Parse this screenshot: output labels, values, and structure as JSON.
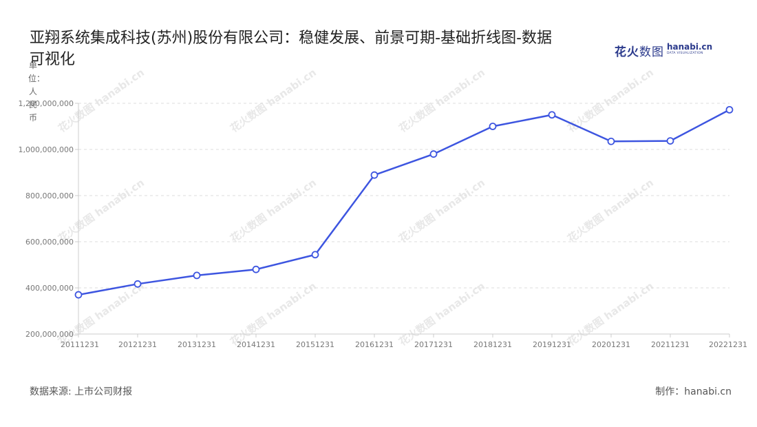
{
  "title": "亚翔系统集成科技(苏州)股份有限公司：稳健发展、前景可期-基础折线图-数据可视化",
  "logo": {
    "cn_bold": "花火",
    "cn_light": "数图",
    "en": "hanabi.cn",
    "en_sub": "DATA VISUALIZATION"
  },
  "watermark": "花火数图 hanabi.cn",
  "footer": {
    "source": "数据来源: 上市公司财报",
    "maker": "制作：hanabi.cn"
  },
  "colors": {
    "line": "#3d55e0",
    "grid": "#dddddd",
    "axis": "#cccccc"
  },
  "chart_data": {
    "type": "line",
    "title": "亚翔系统集成科技(苏州)股份有限公司：稳健发展、前景可期-基础折线图-数据可视化",
    "xlabel": "",
    "ylabel": "单位：人民币",
    "categories": [
      "20111231",
      "20121231",
      "20131231",
      "20141231",
      "20151231",
      "20161231",
      "20171231",
      "20181231",
      "20191231",
      "20201231",
      "20211231",
      "20221231"
    ],
    "series": [
      {
        "values": [
          370000000,
          417000000,
          454000000,
          480000000,
          544000000,
          889000000,
          980000000,
          1100000000,
          1150000000,
          1035000000,
          1037000000,
          1172000000
        ]
      }
    ],
    "ylim": [
      200000000,
      1200000000
    ],
    "yticks": [
      200000000,
      400000000,
      600000000,
      800000000,
      1000000000,
      1200000000
    ],
    "ytick_labels": [
      "200,000,000",
      "400,000,000",
      "600,000,000",
      "800,000,000",
      "1,000,000,000",
      "1,200,000,000"
    ],
    "grid": true,
    "legend": "none"
  }
}
